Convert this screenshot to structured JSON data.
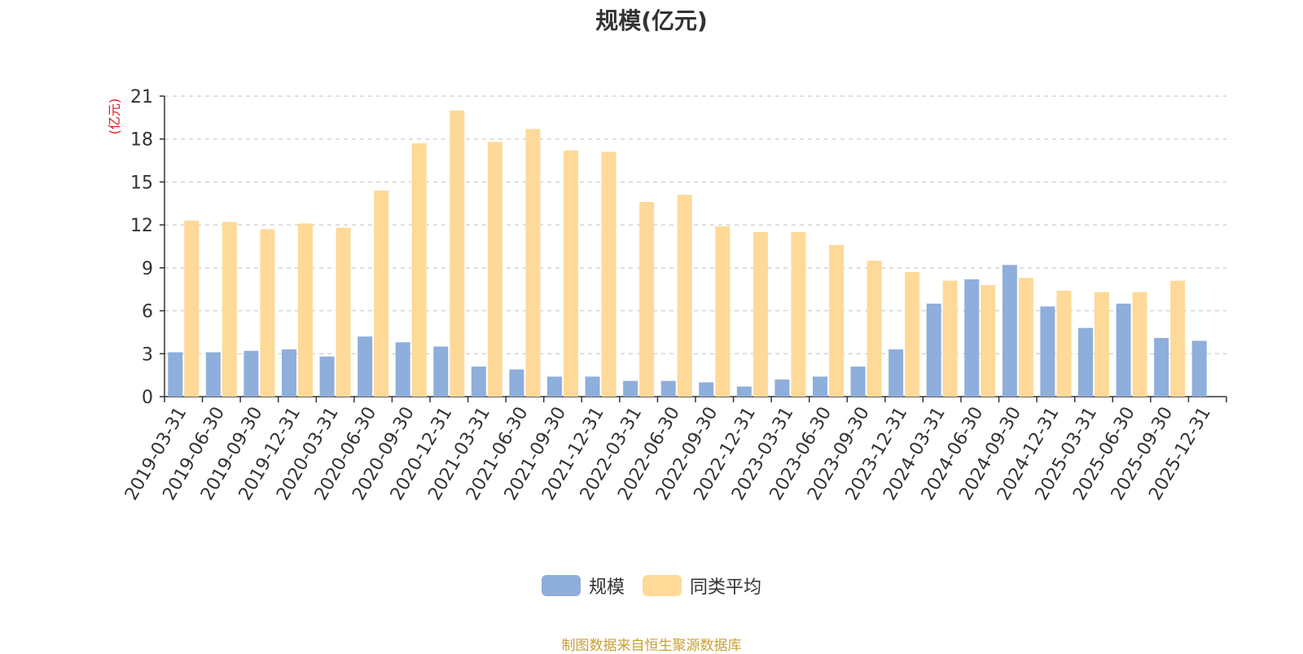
{
  "chart_data": {
    "type": "bar",
    "title": "规模(亿元)",
    "ylabel": "(亿元)",
    "ylim": [
      0,
      21
    ],
    "yticks": [
      0,
      3,
      6,
      9,
      12,
      15,
      18,
      21
    ],
    "grid": true,
    "legend_position": "bottom",
    "categories": [
      "2019-03-31",
      "2019-06-30",
      "2019-09-30",
      "2019-12-31",
      "2020-03-31",
      "2020-06-30",
      "2020-09-30",
      "2020-12-31",
      "2021-03-31",
      "2021-06-30",
      "2021-09-30",
      "2021-12-31",
      "2022-03-31",
      "2022-06-30",
      "2022-09-30",
      "2022-12-31",
      "2023-03-31",
      "2023-06-30",
      "2023-09-30",
      "2023-12-31",
      "2024-03-31",
      "2024-06-30",
      "2024-09-30",
      "2024-12-31",
      "2025-03-31",
      "2025-06-30",
      "2025-09-30",
      "2025-12-31"
    ],
    "series": [
      {
        "name": "规模",
        "color": "#8eaedb",
        "values": [
          3.1,
          3.1,
          3.2,
          3.3,
          2.8,
          4.2,
          3.8,
          3.5,
          2.1,
          1.9,
          1.4,
          1.4,
          1.1,
          1.1,
          1.0,
          0.7,
          1.2,
          1.4,
          2.1,
          3.3,
          6.5,
          8.2,
          9.2,
          6.3,
          4.8,
          6.5,
          4.1,
          3.9
        ]
      },
      {
        "name": "同类平均",
        "color": "#fed998",
        "values": [
          12.3,
          12.2,
          11.7,
          12.1,
          11.8,
          14.4,
          17.7,
          20.0,
          17.8,
          18.7,
          17.2,
          17.1,
          13.6,
          14.1,
          11.9,
          11.5,
          11.5,
          10.6,
          9.5,
          8.7,
          8.1,
          7.8,
          8.3,
          7.4,
          7.3,
          7.3,
          8.1,
          null
        ]
      }
    ]
  },
  "legend": {
    "items": [
      {
        "label": "规模",
        "color": "#8eaedb"
      },
      {
        "label": "同类平均",
        "color": "#fed998"
      }
    ]
  },
  "source_note": "制图数据来自恒生聚源数据库"
}
